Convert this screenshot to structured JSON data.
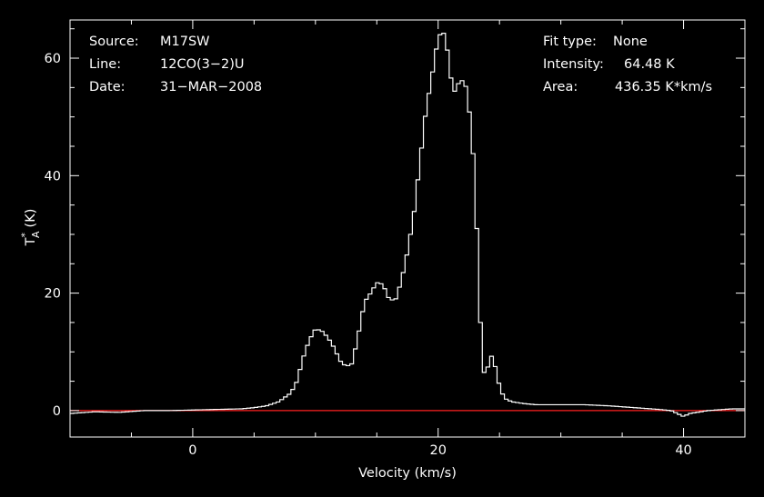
{
  "chart_data": {
    "type": "line",
    "colors": {
      "background": "#000000",
      "foreground": "#ffffff",
      "baseline": "#ff2020"
    },
    "header": {
      "source_label": "Source:",
      "source_value": "M17SW",
      "line_label": "Line:",
      "line_value": "12CO(3−2)U",
      "date_label": "Date:",
      "date_value": "31−MAR−2008",
      "fit_label": "Fit type:",
      "fit_value": "None",
      "intensity_label": "Intensity:",
      "intensity_value": "64.48 K",
      "area_label": "Area:",
      "area_value": "436.35 K*km/s"
    },
    "xlabel": "Velocity (km/s)",
    "ylabel": "T*A (K)",
    "ylabel_main": "T",
    "ylabel_sup": "*",
    "ylabel_sub": "A",
    "ylabel_unit": "(K)",
    "xlim": [
      -10,
      45
    ],
    "ylim": [
      -4.5,
      66.5
    ],
    "x_ticks": [
      {
        "value": 0,
        "label": "0"
      },
      {
        "value": 20,
        "label": "20"
      },
      {
        "value": 40,
        "label": "40"
      }
    ],
    "y_ticks": [
      {
        "value": 0,
        "label": "0"
      },
      {
        "value": 20,
        "label": "20"
      },
      {
        "value": 40,
        "label": "40"
      },
      {
        "value": 60,
        "label": "60"
      }
    ],
    "x_minor_step": 5,
    "y_minor_step": 5,
    "baseline": 0,
    "step_width": 0.3,
    "series": [
      {
        "x": [
          -10,
          -8,
          -6,
          -4,
          -2,
          0,
          2,
          4,
          5,
          6,
          7,
          8,
          8.5,
          9,
          9.5,
          10,
          10.5,
          11,
          11.5,
          12,
          12.5,
          13,
          13.5,
          14,
          14.5,
          15,
          15.5,
          16,
          16.5,
          17,
          17.5,
          18,
          18.5,
          19,
          19.5,
          20,
          20.3,
          20.6,
          21,
          21.4,
          21.7,
          22,
          22.3,
          22.6,
          23,
          23.3,
          23.6,
          23.8,
          24,
          24.3,
          24.6,
          24.9,
          25.2,
          25.5,
          26,
          27,
          28,
          30,
          32,
          34,
          36,
          38,
          39,
          39.5,
          40,
          40.5,
          42,
          44,
          45
        ],
        "y": [
          -0.5,
          -0.2,
          -0.3,
          0.0,
          0.0,
          0.1,
          0.2,
          0.3,
          0.5,
          0.8,
          1.5,
          3.0,
          5.0,
          9.0,
          12.0,
          13.9,
          13.6,
          12.5,
          10.8,
          8.5,
          7.5,
          8.0,
          13.0,
          18.5,
          20.0,
          21.8,
          21.5,
          19.0,
          18.7,
          22.0,
          27.0,
          33.0,
          42.0,
          51.0,
          57.0,
          63.5,
          64.48,
          64.0,
          57.0,
          54.0,
          56.0,
          56.2,
          55.0,
          50.0,
          40.0,
          22.0,
          8.0,
          6.0,
          7.0,
          9.5,
          8.0,
          5.0,
          3.0,
          2.0,
          1.5,
          1.2,
          1.0,
          1.0,
          1.0,
          0.8,
          0.5,
          0.2,
          0.0,
          -0.5,
          -1.0,
          -0.5,
          0.0,
          0.3,
          0.3
        ]
      }
    ]
  }
}
